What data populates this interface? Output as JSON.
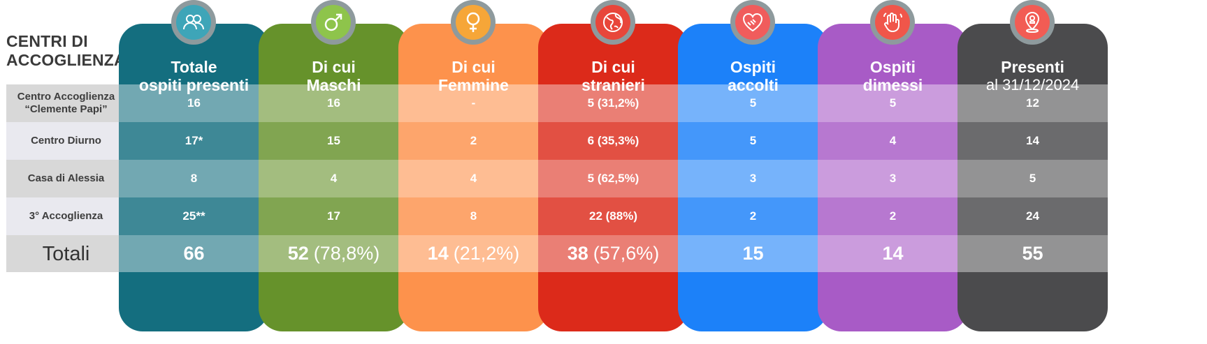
{
  "title": "CENTRI DI ACCOGLIENZA",
  "rows": [
    {
      "label": "Centro Accoglienza “Clemente Papi”"
    },
    {
      "label": "Centro Diurno"
    },
    {
      "label": "Casa di Alessia"
    },
    {
      "label": "3° Accoglienza"
    },
    {
      "label": "Totali"
    }
  ],
  "columns": [
    {
      "id": "totale",
      "header": "Totale",
      "header2": "ospiti presenti",
      "color": "#146e7f",
      "icon": "people-icon",
      "values": [
        "16",
        "17*",
        "8",
        "25**"
      ],
      "total": "66",
      "total_pct": ""
    },
    {
      "id": "maschi",
      "header": "Di cui",
      "header2": "Maschi",
      "color": "#66922b",
      "icon": "male-symbol-icon",
      "values": [
        "16",
        "15",
        "4",
        "17"
      ],
      "total": "52",
      "total_pct": "(78,8%)"
    },
    {
      "id": "femmine",
      "header": "Di cui",
      "header2": "Femmine",
      "color": "#fd924c",
      "icon": "female-symbol-icon",
      "values": [
        "-",
        "2",
        "4",
        "8"
      ],
      "total": "14",
      "total_pct": "(21,2%)"
    },
    {
      "id": "stranieri",
      "header": "Di cui",
      "header2": "stranieri",
      "color": "#dc2a1a",
      "icon": "globe-icon",
      "values": [
        "5 (31,2%)",
        "6 (35,3%)",
        "5 (62,5%)",
        "22 (88%)"
      ],
      "total": "38",
      "total_pct": "(57,6%)"
    },
    {
      "id": "accolti",
      "header": "Ospiti",
      "header2": "accolti",
      "color": "#1c81f9",
      "icon": "handshake-heart-icon",
      "values": [
        "5",
        "5",
        "3",
        "2"
      ],
      "total": "15",
      "total_pct": ""
    },
    {
      "id": "dimessi",
      "header": "Ospiti",
      "header2": "dimessi",
      "color": "#a85bc6",
      "icon": "waving-hand-icon",
      "values": [
        "5",
        "4",
        "3",
        "2"
      ],
      "total": "14",
      "total_pct": ""
    },
    {
      "id": "presenti",
      "header": "Presenti",
      "header2": "al 31/12/2024",
      "color": "#4b4b4d",
      "icon": "location-pin-icon",
      "values": [
        "12",
        "14",
        "5",
        "24"
      ],
      "total": "55",
      "total_pct": ""
    }
  ],
  "chart_data": {
    "type": "table",
    "title": "CENTRI DI ACCOGLIENZA",
    "row_labels": [
      "Centro Accoglienza “Clemente Papi”",
      "Centro Diurno",
      "Casa di Alessia",
      "3° Accoglienza",
      "Totali"
    ],
    "column_labels": [
      "Totale ospiti presenti",
      "Di cui Maschi",
      "Di cui Femmine",
      "Di cui stranieri",
      "Ospiti accolti",
      "Ospiti dimessi",
      "Presenti al 31/12/2024"
    ],
    "cells": [
      [
        "16",
        "16",
        "-",
        "5 (31,2%)",
        "5",
        "5",
        "12"
      ],
      [
        "17*",
        "15",
        "2",
        "6 (35,3%)",
        "5",
        "4",
        "14"
      ],
      [
        "8",
        "4",
        "4",
        "5 (62,5%)",
        "3",
        "3",
        "5"
      ],
      [
        "25**",
        "17",
        "8",
        "22 (88%)",
        "2",
        "2",
        "24"
      ],
      [
        "66",
        "52 (78,8%)",
        "14 (21,2%)",
        "38 (57,6%)",
        "15",
        "14",
        "55"
      ]
    ]
  }
}
